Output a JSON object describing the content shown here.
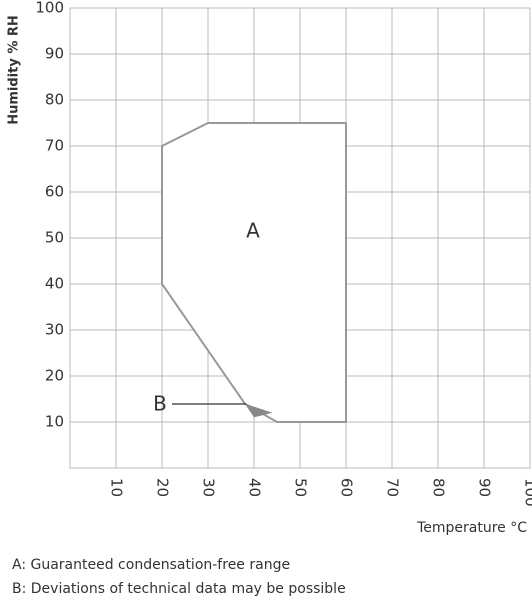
{
  "chart_data": {
    "type": "area",
    "x_label": "Temperature °C",
    "y_label": "Humidity % RH",
    "xlim": [
      0,
      100
    ],
    "ylim": [
      0,
      100
    ],
    "xticks": [
      10,
      20,
      30,
      40,
      50,
      60,
      70,
      80,
      90,
      100
    ],
    "yticks": [
      10,
      20,
      30,
      40,
      50,
      60,
      70,
      80,
      90,
      100
    ],
    "grid": true,
    "series": [
      {
        "name": "A",
        "color": "#ffffff",
        "x": [
          20,
          20,
          30,
          60,
          60,
          45,
          38
        ],
        "values": [
          40,
          70,
          75,
          75,
          10,
          10,
          14
        ]
      },
      {
        "name": "B",
        "color": "#888888",
        "x": [
          38,
          44,
          40
        ],
        "values": [
          14,
          12,
          11
        ]
      }
    ],
    "notes": [
      "A: Guaranteed condensation-free range",
      "B: Deviations of technical data may be possible"
    ]
  }
}
